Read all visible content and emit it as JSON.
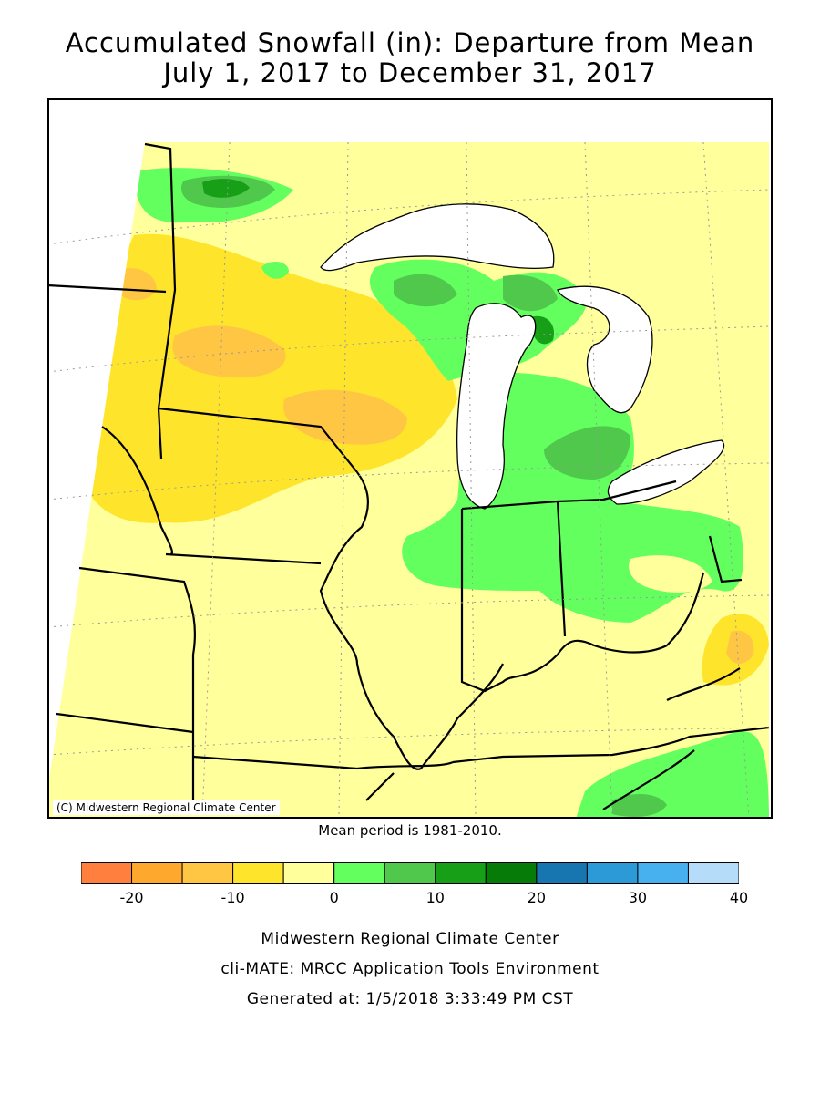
{
  "title": {
    "line1": "Accumulated Snowfall (in): Departure from Mean",
    "line2": "July 1, 2017 to December 31, 2017"
  },
  "map": {
    "copyright": "(C) Midwestern Regional Climate Center",
    "mean_note": "Mean period is 1981-2010."
  },
  "legend": {
    "colors": [
      "#ff7f3f",
      "#ffa82e",
      "#ffc644",
      "#ffe42c",
      "#ffff9c",
      "#63ff5f",
      "#4fc84c",
      "#169f17",
      "#067b07",
      "#1776b0",
      "#2b9ad6",
      "#46b1ee",
      "#b5dcf8"
    ],
    "tick_labels": [
      "-20",
      "-10",
      "0",
      "10",
      "20",
      "30",
      "40"
    ]
  },
  "footer": {
    "line1": "Midwestern Regional Climate Center",
    "line2": "cli-MATE: MRCC Application Tools Environment",
    "line3": "Generated at: 1/5/2018 3:33:49 PM CST"
  }
}
